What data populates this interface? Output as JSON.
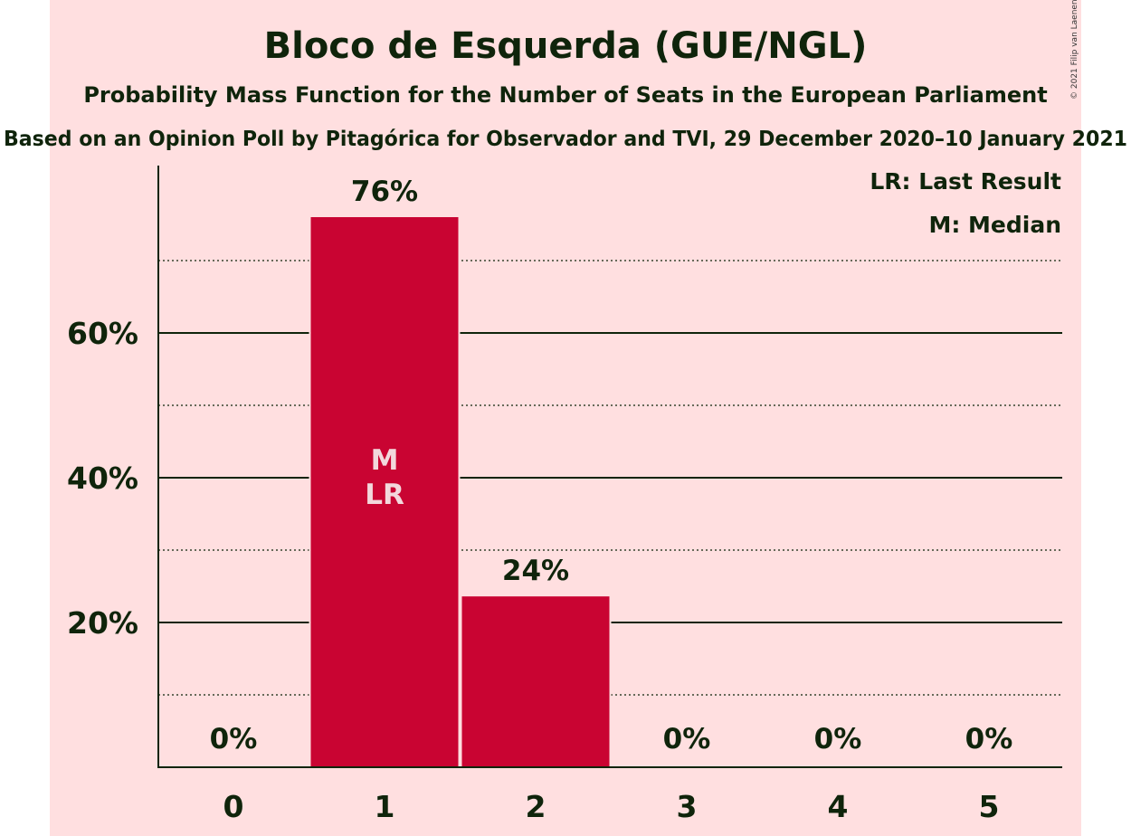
{
  "chart_data": {
    "type": "bar",
    "title": "Bloco de Esquerda (GUE/NGL)",
    "subtitle": "Probability Mass Function for the Number of Seats in the European Parliament",
    "source": "Based on an Opinion Poll by Pitagórica for Observador and TVI, 29 December 2020–10 January 2021",
    "copyright": "© 2021 Filip van Laenen",
    "categories": [
      "0",
      "1",
      "2",
      "3",
      "4",
      "5"
    ],
    "values": [
      0,
      76,
      23.6,
      0,
      0,
      0
    ],
    "value_labels": [
      "0%",
      "76%",
      "24%",
      "0%",
      "0%",
      "0%"
    ],
    "ylim": [
      0,
      83
    ],
    "y_ticks": [
      {
        "value": 20,
        "label": "20%"
      },
      {
        "value": 40,
        "label": "40%"
      },
      {
        "value": 60,
        "label": "60%"
      }
    ],
    "y_minor_gridlines": [
      10,
      30,
      50,
      70
    ],
    "bar_annotations": [
      {
        "category": "1",
        "lines": [
          "M",
          "LR"
        ]
      }
    ],
    "legend": {
      "placement": "top-right",
      "entries": [
        "LR: Last Result",
        "M: Median"
      ]
    },
    "grid": true,
    "colors": {
      "bar": "#c90432",
      "background": "#ffdfe0",
      "text": "#0f240b",
      "gridline": "#0f240b"
    }
  }
}
